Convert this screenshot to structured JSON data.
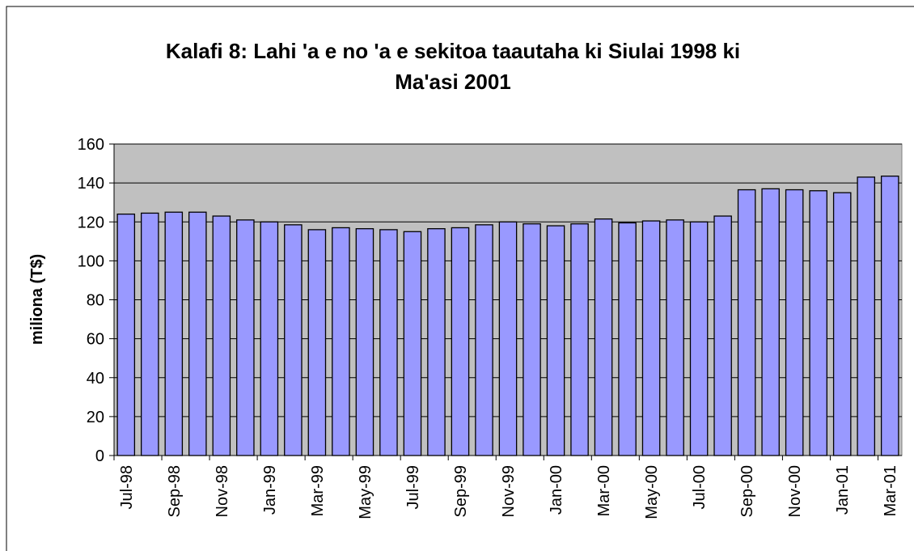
{
  "chart_data": {
    "type": "bar",
    "title": [
      "Kalafi 8: Lahi 'a e no 'a e sekitoa taautaha ki Siulai 1998 ki",
      "Ma'asi 2001"
    ],
    "y_label": "miliona (T$)",
    "categories": [
      "Jul-98",
      null,
      "Sep-98",
      null,
      "Nov-98",
      null,
      "Jan-99",
      null,
      "Mar-99",
      null,
      "May-99",
      null,
      "Jul-99",
      null,
      "Sep-99",
      null,
      "Nov-99",
      null,
      "Jan-00",
      null,
      "Mar-00",
      null,
      "May-00",
      null,
      "Jul-00",
      null,
      "Sep-00",
      null,
      "Nov-00",
      null,
      "Jan-01",
      null,
      "Mar-01"
    ],
    "values": [
      124,
      124.5,
      125,
      125,
      123,
      121,
      120,
      118.5,
      116,
      117,
      116.5,
      116,
      115,
      116.5,
      117,
      118.5,
      120,
      119,
      118,
      119,
      121.5,
      119.5,
      120.5,
      121,
      120,
      123,
      136.5,
      137,
      136.5,
      136,
      135,
      143,
      143.5
    ],
    "color": "#9999ff",
    "ylim": [
      0,
      160
    ],
    "yticks": [
      0,
      20,
      40,
      60,
      80,
      100,
      120,
      140,
      160
    ],
    "grid": true
  }
}
